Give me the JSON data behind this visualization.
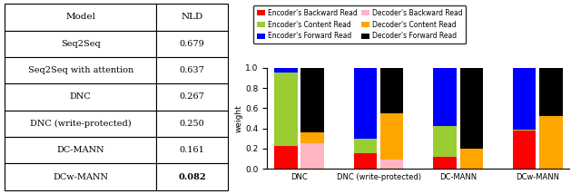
{
  "table": {
    "models": [
      "Seq2Seq",
      "Seq2Seq with attention",
      "DNC",
      "DNC (write-protected)",
      "DC-MANN",
      "DCw-MANN"
    ],
    "nld": [
      "0.679",
      "0.637",
      "0.267",
      "0.250",
      "0.161",
      "0.082"
    ],
    "bold_last": true
  },
  "bar_groups": [
    "DNC",
    "DNC (write-protected)",
    "DC-MANN",
    "DCw-MANN"
  ],
  "encoder_bars": {
    "backward_read": [
      0.23,
      0.15,
      0.12,
      0.38
    ],
    "content_read": [
      0.72,
      0.15,
      0.3,
      0.01
    ],
    "forward_read": [
      0.05,
      0.7,
      0.58,
      0.61
    ]
  },
  "decoder_bars": {
    "backward_read": [
      0.25,
      0.09,
      0.0,
      0.0
    ],
    "content_read": [
      0.11,
      0.46,
      0.2,
      0.52
    ],
    "forward_read": [
      0.64,
      0.45,
      0.8,
      0.48
    ]
  },
  "colors": {
    "enc_backward": "#ff0000",
    "enc_content": "#9acd32",
    "enc_forward": "#0000ff",
    "dec_backward": "#ffb6c1",
    "dec_content": "#ffa500",
    "dec_forward": "#000000"
  },
  "legend_labels": [
    "Encoder's Backward Read",
    "Encoder's Content Read",
    "Encoder's Forward Read",
    "Decoder's Backward Read",
    "Decoder's Content Read",
    "Decoder's Forward Read"
  ],
  "ylabel": "weight",
  "ylim": [
    0.0,
    1.0
  ],
  "yticks": [
    0.0,
    0.2,
    0.4,
    0.6,
    0.8,
    1.0
  ]
}
